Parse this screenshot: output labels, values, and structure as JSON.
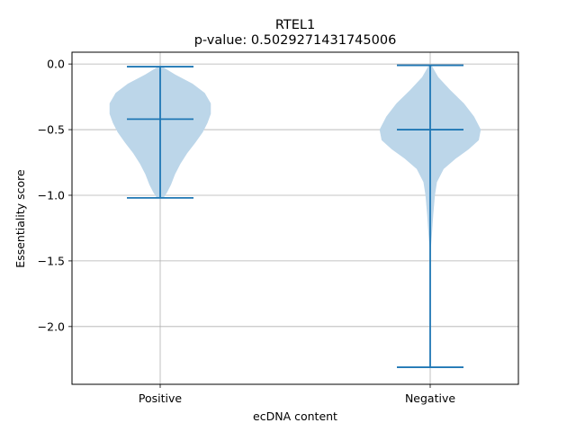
{
  "chart_data": {
    "type": "violin",
    "title": "RTEL1",
    "subtitle": "p-value: 0.5029271431745006",
    "xlabel": "ecDNA content",
    "ylabel": "Essentiality score",
    "categories": [
      "Positive",
      "Negative"
    ],
    "ylim": [
      -2.44,
      0.09
    ],
    "yticks": [
      0.0,
      -0.5,
      -1.0,
      -1.5,
      -2.0
    ],
    "ytick_labels": [
      "0.0",
      "−0.5",
      "−1.0",
      "−1.5",
      "−2.0"
    ],
    "grid": true,
    "colors": {
      "violin_fill": "#bcd6e9",
      "line": "#1f77b4",
      "grid": "#b0b0b0"
    },
    "violins": [
      {
        "category": "Positive",
        "max": -0.02,
        "mean": -0.42,
        "min": -1.02,
        "density_profile": [
          [
            -0.02,
            0.03
          ],
          [
            -0.08,
            0.22
          ],
          [
            -0.15,
            0.48
          ],
          [
            -0.22,
            0.66
          ],
          [
            -0.3,
            0.75
          ],
          [
            -0.38,
            0.75
          ],
          [
            -0.45,
            0.7
          ],
          [
            -0.52,
            0.63
          ],
          [
            -0.6,
            0.52
          ],
          [
            -0.68,
            0.4
          ],
          [
            -0.76,
            0.3
          ],
          [
            -0.84,
            0.22
          ],
          [
            -0.92,
            0.16
          ],
          [
            -0.98,
            0.1
          ],
          [
            -1.02,
            0.05
          ]
        ]
      },
      {
        "category": "Negative",
        "max": -0.01,
        "mean": -0.5,
        "min": -2.31,
        "density_profile": [
          [
            -0.01,
            0.02
          ],
          [
            -0.1,
            0.12
          ],
          [
            -0.2,
            0.3
          ],
          [
            -0.3,
            0.5
          ],
          [
            -0.4,
            0.65
          ],
          [
            -0.5,
            0.75
          ],
          [
            -0.58,
            0.72
          ],
          [
            -0.65,
            0.57
          ],
          [
            -0.72,
            0.38
          ],
          [
            -0.8,
            0.2
          ],
          [
            -0.9,
            0.1
          ],
          [
            -1.0,
            0.07
          ],
          [
            -1.15,
            0.045
          ],
          [
            -1.3,
            0.025
          ],
          [
            -1.4,
            0.01
          ],
          [
            -1.6,
            0.008
          ],
          [
            -1.9,
            0.006
          ],
          [
            -2.1,
            0.004
          ],
          [
            -2.31,
            0.002
          ]
        ]
      }
    ]
  }
}
